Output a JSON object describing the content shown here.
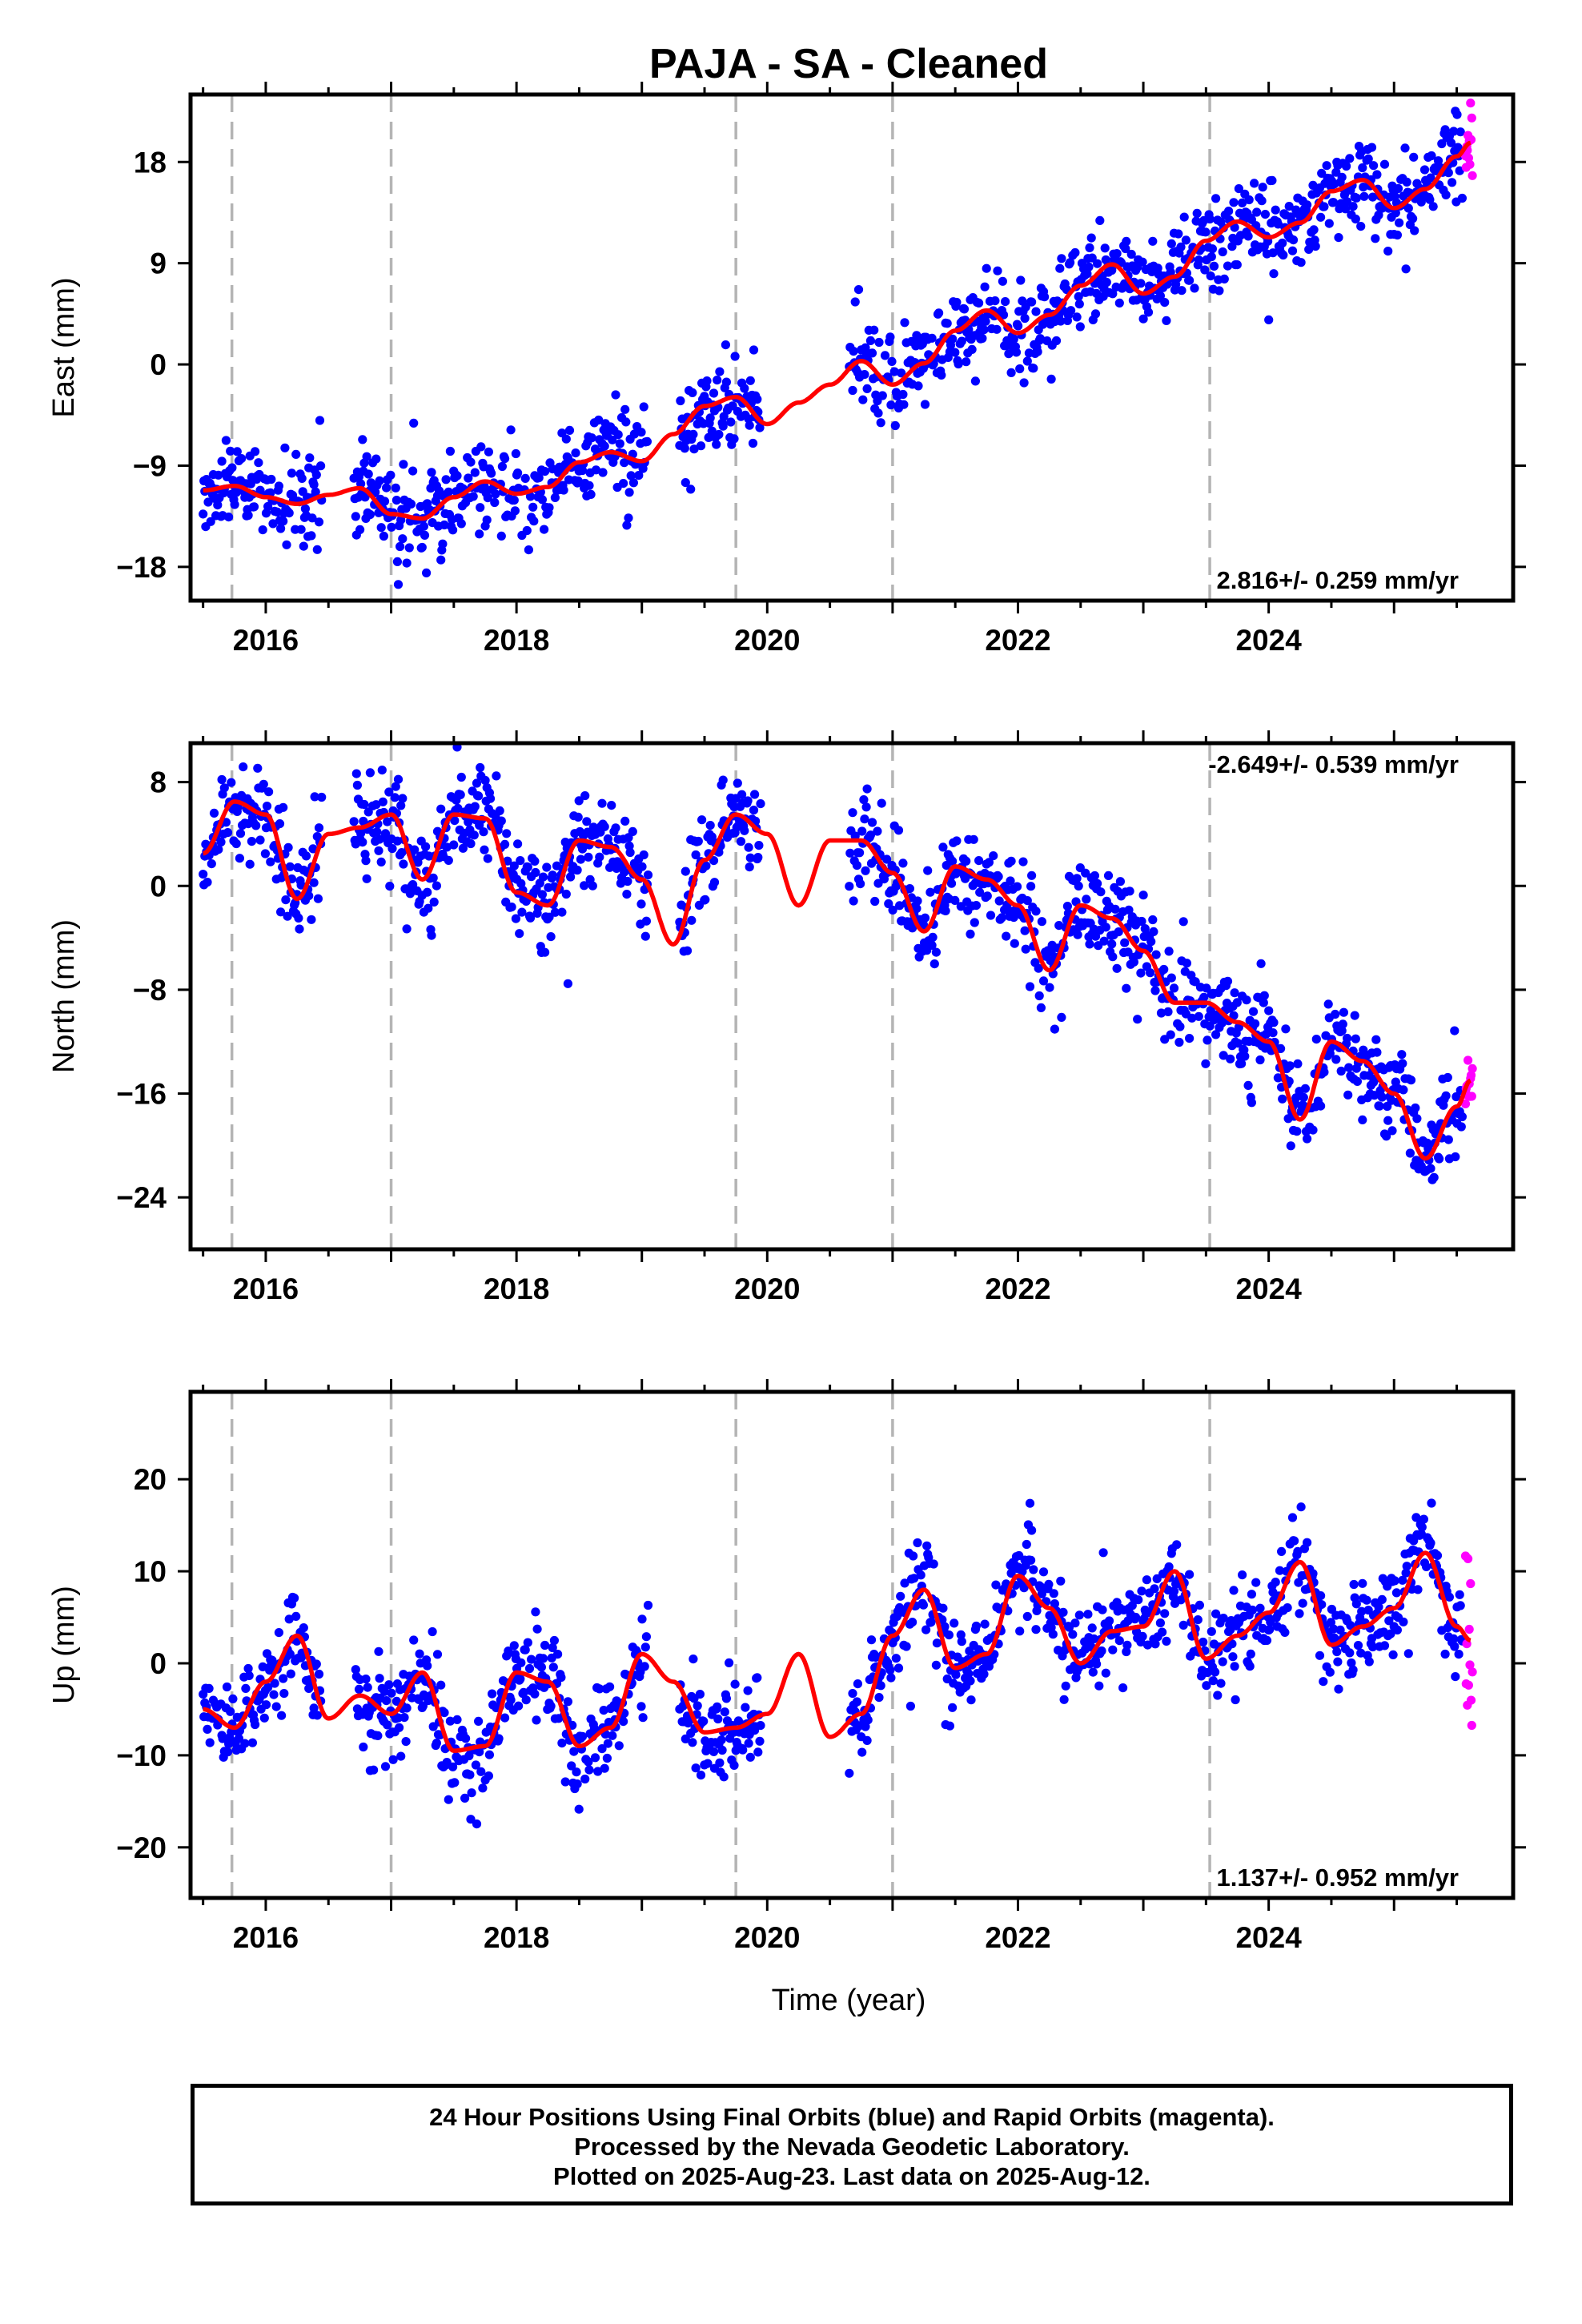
{
  "title": "PAJA  - SA - Cleaned",
  "xlabel": "Time (year)",
  "footer": {
    "line1": "24 Hour Positions Using Final Orbits (blue) and Rapid Orbits (magenta).",
    "line2": "Processed by the Nevada Geodetic Laboratory.",
    "line3": "Plotted on 2025-Aug-23. Last data on 2025-Aug-12."
  },
  "colors": {
    "final": "#0000ff",
    "rapid": "#ff00ff",
    "model": "#ff0000",
    "breaks": "#b4b4b4"
  },
  "chart_data": [
    {
      "type": "scatter",
      "panel": "East",
      "ylabel": "East (mm)",
      "rate_label": "2.816+/- 0.259 mm/yr",
      "xlim": [
        2015.4,
        2025.95
      ],
      "ylim": [
        -21,
        24
      ],
      "xticks": [
        2016,
        2018,
        2020,
        2022,
        2024
      ],
      "yticks": [
        -18,
        -9,
        0,
        9,
        18
      ],
      "breaks": [
        2015.73,
        2017.0,
        2019.75,
        2021.0,
        2023.53
      ],
      "gaps": [
        [
          2016.45,
          2016.7
        ],
        [
          2019.05,
          2019.3
        ],
        [
          2019.95,
          2020.65
        ]
      ],
      "data_range": [
        2015.5,
        2025.61
      ],
      "rapid_range": [
        2025.55,
        2025.61
      ],
      "model": {
        "x": [
          2015.5,
          2015.75,
          2016.0,
          2016.25,
          2016.5,
          2016.75,
          2017.0,
          2017.25,
          2017.5,
          2017.75,
          2018.0,
          2018.25,
          2018.5,
          2018.75,
          2019.0,
          2019.25,
          2019.5,
          2019.75,
          2020.0,
          2020.25,
          2020.5,
          2020.75,
          2021.0,
          2021.25,
          2021.5,
          2021.75,
          2022.0,
          2022.25,
          2022.5,
          2022.75,
          2023.0,
          2023.25,
          2023.5,
          2023.75,
          2024.0,
          2024.25,
          2024.5,
          2024.75,
          2025.0,
          2025.25,
          2025.5,
          2025.61
        ],
        "y": [
          -11.2,
          -10.8,
          -11.8,
          -12.4,
          -11.6,
          -11.0,
          -13.3,
          -13.7,
          -11.8,
          -10.4,
          -11.5,
          -10.9,
          -8.7,
          -7.8,
          -8.6,
          -6.2,
          -3.7,
          -2.9,
          -5.3,
          -3.4,
          -1.8,
          0.3,
          -1.8,
          0.1,
          3.0,
          4.8,
          2.8,
          4.4,
          7.0,
          8.9,
          6.3,
          7.8,
          11.0,
          12.7,
          11.3,
          12.6,
          15.4,
          16.4,
          13.9,
          15.6,
          18.5,
          19.7
        ]
      }
    },
    {
      "type": "scatter",
      "panel": "North",
      "ylabel": "North (mm)",
      "rate_label": "-2.649+/- 0.539 mm/yr",
      "xlim": [
        2015.4,
        2025.95
      ],
      "ylim": [
        -28,
        11
      ],
      "xticks": [
        2016,
        2018,
        2020,
        2022,
        2024
      ],
      "yticks": [
        -24,
        -16,
        -8,
        0,
        8
      ],
      "breaks": [
        2015.73,
        2017.0,
        2019.75,
        2021.0,
        2023.53
      ],
      "gaps": [
        [
          2016.45,
          2016.7
        ],
        [
          2019.05,
          2019.3
        ],
        [
          2019.95,
          2020.65
        ]
      ],
      "data_range": [
        2015.5,
        2025.61
      ],
      "rapid_range": [
        2025.55,
        2025.61
      ],
      "model": {
        "x": [
          2015.5,
          2015.75,
          2016.0,
          2016.25,
          2016.5,
          2016.75,
          2017.0,
          2017.25,
          2017.5,
          2017.75,
          2018.0,
          2018.25,
          2018.5,
          2018.75,
          2019.0,
          2019.25,
          2019.5,
          2019.75,
          2020.0,
          2020.25,
          2020.5,
          2020.75,
          2021.0,
          2021.25,
          2021.5,
          2021.75,
          2022.0,
          2022.25,
          2022.5,
          2022.75,
          2023.0,
          2023.25,
          2023.5,
          2023.75,
          2024.0,
          2024.25,
          2024.5,
          2024.75,
          2025.0,
          2025.25,
          2025.5,
          2025.61
        ],
        "y": [
          2.5,
          6.5,
          5.5,
          -1.0,
          4.0,
          4.5,
          5.5,
          0.5,
          5.5,
          5.2,
          -0.5,
          -1.5,
          3.5,
          3.0,
          0.5,
          -4.5,
          2.0,
          5.5,
          4.0,
          -1.5,
          3.5,
          3.5,
          1.0,
          -3.5,
          1.5,
          0.5,
          -1.5,
          -6.5,
          -1.5,
          -2.5,
          -5.0,
          -9.0,
          -9.0,
          -10.5,
          -12.0,
          -18.0,
          -12.0,
          -13.5,
          -16.0,
          -21.0,
          -17.0,
          -15.0
        ]
      }
    },
    {
      "type": "scatter",
      "panel": "Up",
      "ylabel": "Up (mm)",
      "rate_label": "1.137+/- 0.952 mm/yr",
      "xlim": [
        2015.4,
        2025.95
      ],
      "ylim": [
        -25.5,
        29.5
      ],
      "xticks": [
        2016,
        2018,
        2020,
        2022,
        2024
      ],
      "yticks": [
        -20,
        -10,
        0,
        10,
        20
      ],
      "breaks": [
        2015.73,
        2017.0,
        2019.75,
        2021.0,
        2023.53
      ],
      "gaps": [
        [
          2016.45,
          2016.7
        ],
        [
          2019.05,
          2019.3
        ],
        [
          2019.95,
          2020.65
        ]
      ],
      "data_range": [
        2015.5,
        2025.61
      ],
      "rapid_range": [
        2025.55,
        2025.61
      ],
      "model": {
        "x": [
          2015.5,
          2015.75,
          2016.0,
          2016.25,
          2016.5,
          2016.75,
          2017.0,
          2017.25,
          2017.5,
          2017.75,
          2018.0,
          2018.25,
          2018.5,
          2018.75,
          2019.0,
          2019.25,
          2019.5,
          2019.75,
          2020.0,
          2020.25,
          2020.5,
          2020.75,
          2021.0,
          2021.25,
          2021.5,
          2021.75,
          2022.0,
          2022.25,
          2022.5,
          2022.75,
          2023.0,
          2023.25,
          2023.5,
          2023.75,
          2024.0,
          2024.25,
          2024.5,
          2024.75,
          2025.0,
          2025.25,
          2025.5,
          2025.61
        ],
        "y": [
          -5.0,
          -7.0,
          -2.0,
          3.0,
          -6.0,
          -3.5,
          -5.5,
          -1.0,
          -9.5,
          -9.0,
          -1.0,
          -2.0,
          -9.0,
          -7.0,
          1.0,
          -2.0,
          -7.5,
          -7.0,
          -5.5,
          1.0,
          -8.0,
          -5.5,
          3.0,
          8.0,
          -0.5,
          1.0,
          9.5,
          6.0,
          0.0,
          3.5,
          4.0,
          10.0,
          0.5,
          3.0,
          5.5,
          11.0,
          2.0,
          4.0,
          6.0,
          12.0,
          4.0,
          2.5
        ]
      }
    }
  ]
}
